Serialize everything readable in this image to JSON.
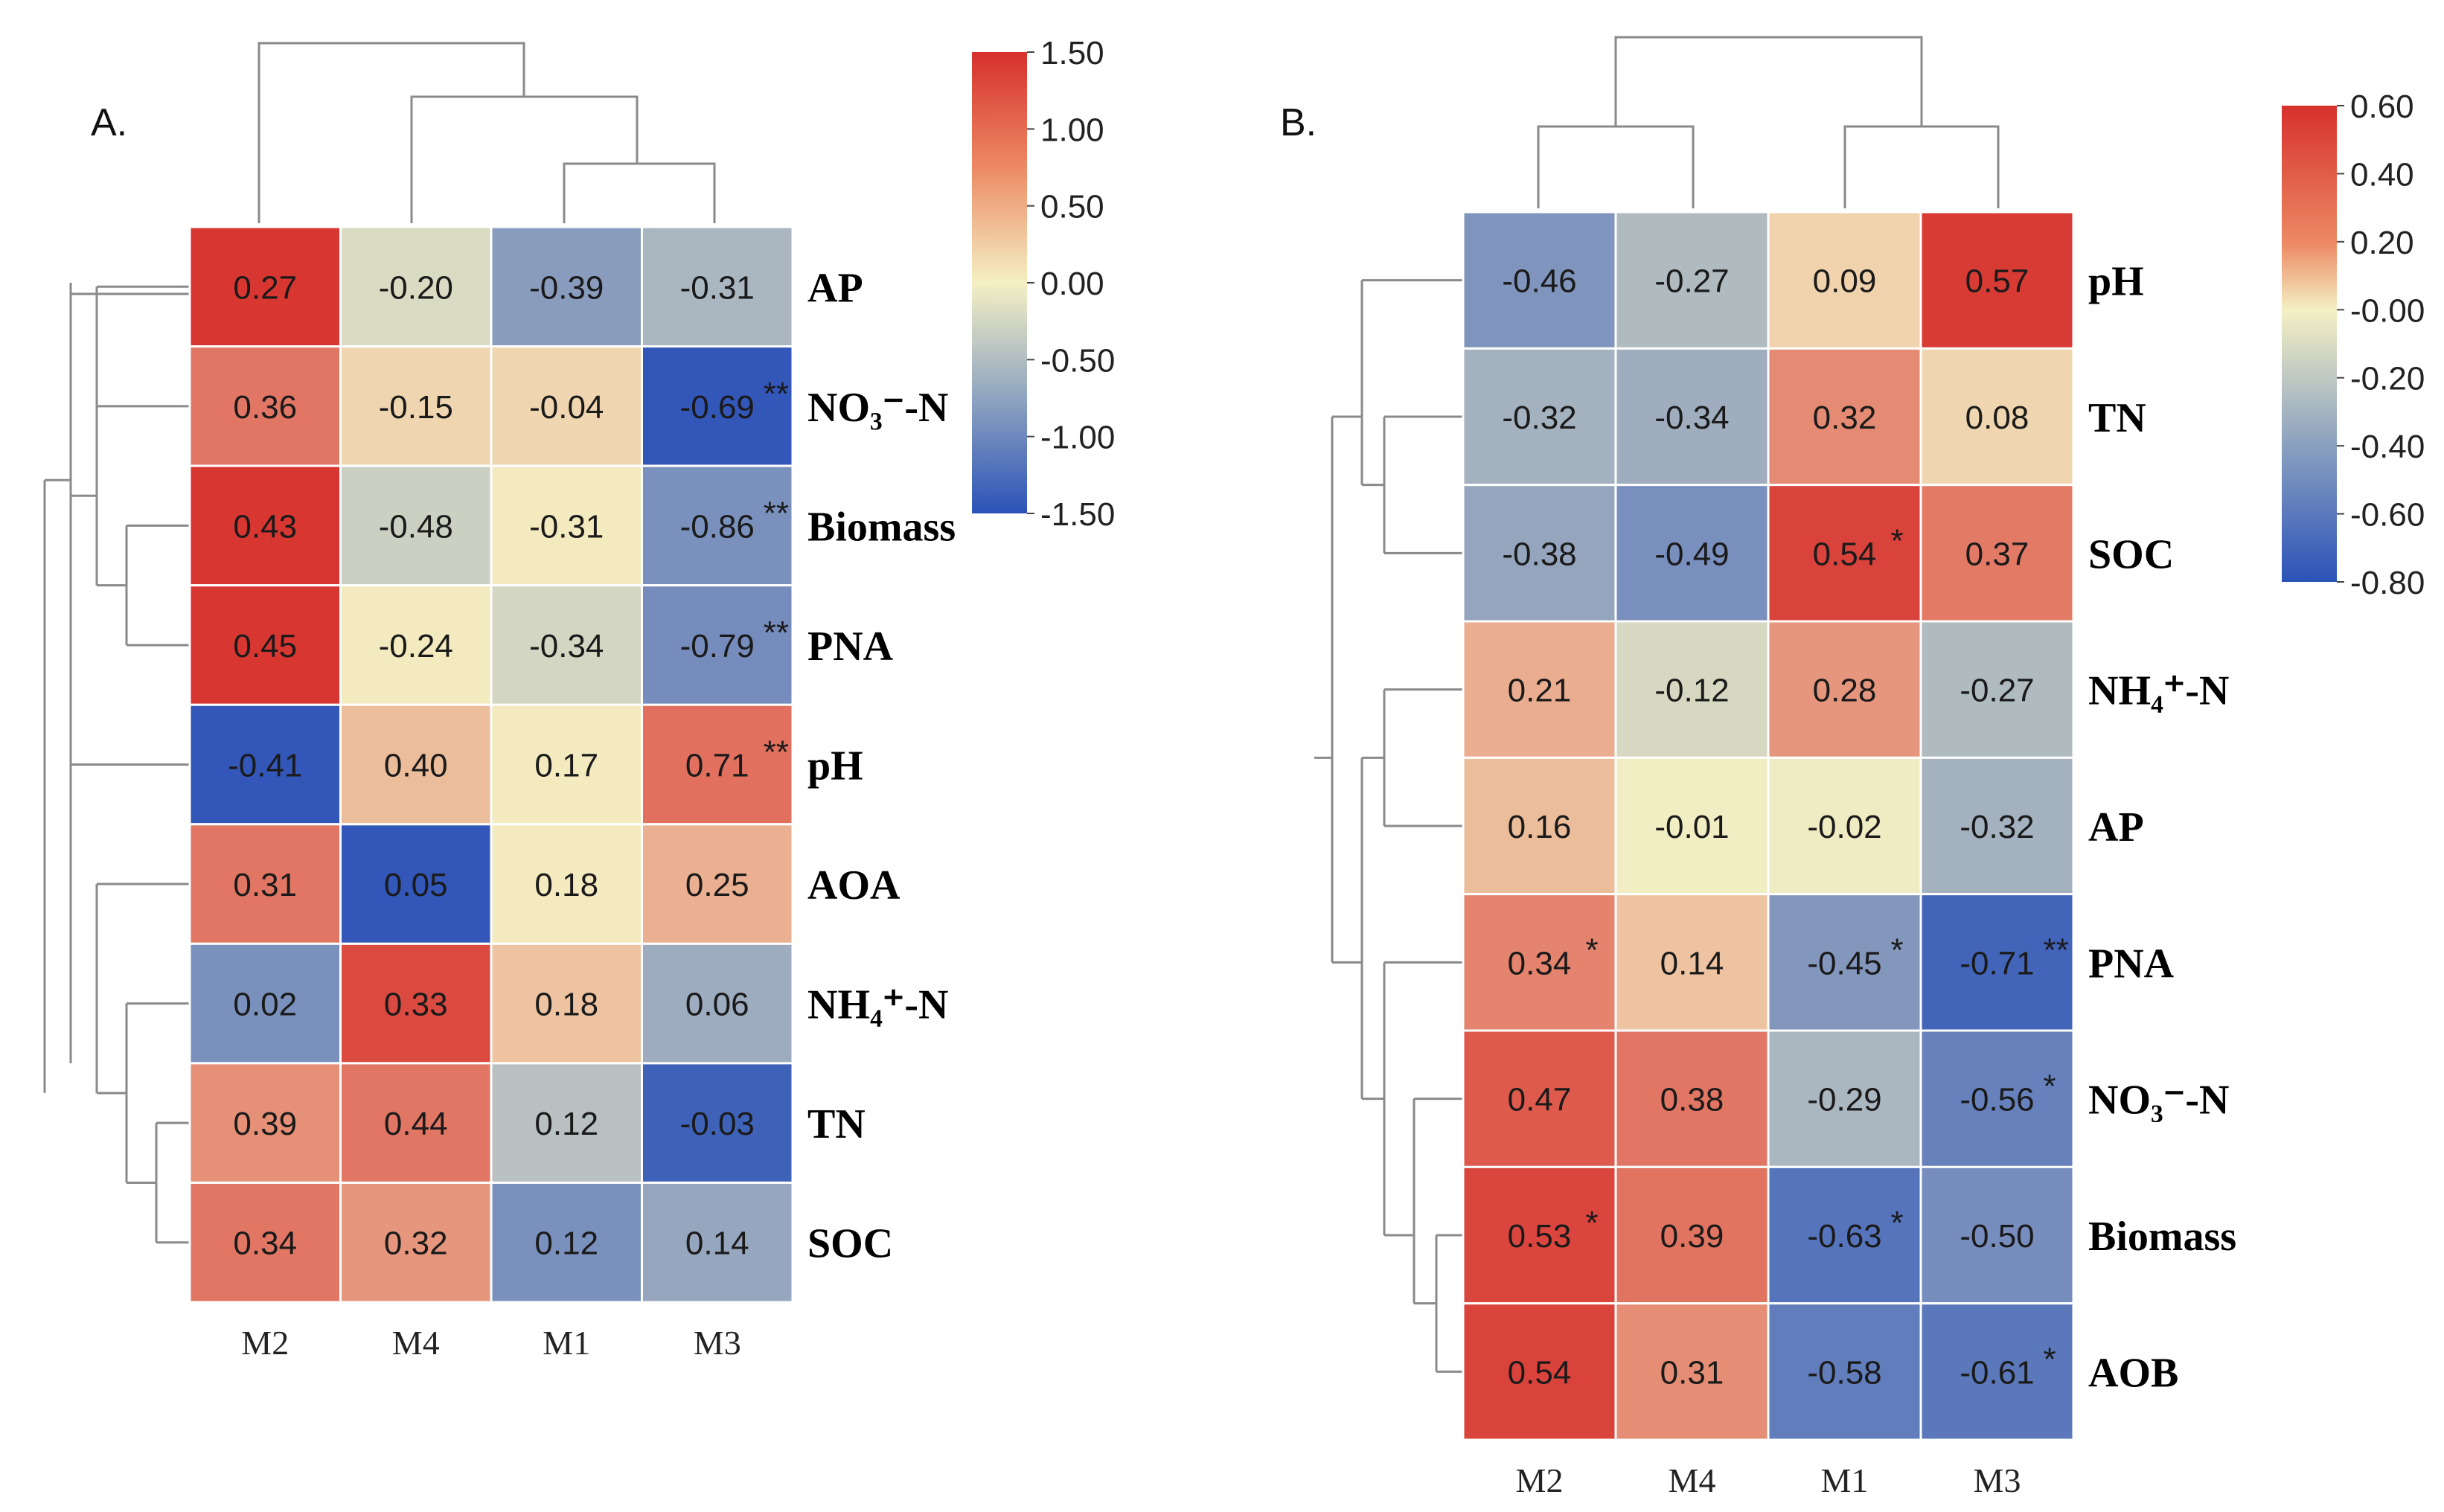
{
  "chart_data": [
    {
      "type": "heatmap",
      "panel_label": "A.",
      "columns": [
        "M2",
        "M4",
        "M1",
        "M3"
      ],
      "rows": [
        "AP",
        "NO₃⁻-N",
        "Biomass",
        "PNA",
        "pH",
        "AOA",
        "NH₄⁺-N",
        "TN",
        "SOC"
      ],
      "values": [
        [
          0.27,
          -0.2,
          -0.39,
          -0.31
        ],
        [
          0.36,
          -0.15,
          -0.04,
          -0.69
        ],
        [
          0.43,
          -0.48,
          -0.31,
          -0.86
        ],
        [
          0.45,
          -0.24,
          -0.34,
          -0.79
        ],
        [
          -0.41,
          0.4,
          0.17,
          0.71
        ],
        [
          0.31,
          0.05,
          0.18,
          0.25
        ],
        [
          0.02,
          0.33,
          0.18,
          0.06
        ],
        [
          0.39,
          0.44,
          0.12,
          -0.03
        ],
        [
          0.34,
          0.32,
          0.12,
          0.14
        ]
      ],
      "labels": [
        [
          "0.27",
          "-0.20",
          "-0.39",
          "-0.31"
        ],
        [
          "0.36",
          "-0.15",
          "-0.04",
          "-0.69"
        ],
        [
          "0.43",
          "-0.48",
          "-0.31",
          "-0.86"
        ],
        [
          "0.45",
          "-0.24",
          "-0.34",
          "-0.79"
        ],
        [
          "-0.41",
          "0.40",
          "0.17",
          "0.71"
        ],
        [
          "0.31",
          "0.05",
          "0.18",
          "0.25"
        ],
        [
          "0.02",
          "0.33",
          "0.18",
          "0.06"
        ],
        [
          "0.39",
          "0.44",
          "0.12",
          "-0.03"
        ],
        [
          "0.34",
          "0.32",
          "0.12",
          "0.14"
        ]
      ],
      "significance": [
        [
          "",
          "",
          "",
          ""
        ],
        [
          "",
          "",
          "",
          "**"
        ],
        [
          "",
          "",
          "",
          "**"
        ],
        [
          "",
          "",
          "",
          "**"
        ],
        [
          "",
          "",
          "",
          "**"
        ],
        [
          "",
          "",
          "",
          ""
        ],
        [
          "",
          "",
          "",
          ""
        ],
        [
          "",
          "",
          "",
          ""
        ],
        [
          "",
          "",
          "",
          ""
        ]
      ],
      "color_scale": {
        "min": -1.5,
        "max": 1.5,
        "ticks": [
          "1.50",
          "1.00",
          "0.50",
          "0.00",
          "-0.50",
          "-1.00",
          "-1.50"
        ],
        "colors": [
          "#2b52b8",
          "#f4f0c4",
          "#d7302c"
        ]
      },
      "cell_color_values": [
        [
          1.45,
          -0.2,
          -0.8,
          -0.55
        ],
        [
          0.95,
          0.2,
          0.2,
          -1.45
        ],
        [
          1.45,
          -0.3,
          0.05,
          -0.9
        ],
        [
          1.45,
          0.05,
          -0.25,
          -0.95
        ],
        [
          -1.45,
          0.4,
          0.05,
          1.0
        ],
        [
          0.95,
          -1.45,
          0.05,
          0.5
        ],
        [
          -0.9,
          1.3,
          0.35,
          -0.65
        ],
        [
          0.75,
          0.95,
          -0.45,
          -1.35
        ],
        [
          0.95,
          0.7,
          -0.9,
          -0.7
        ]
      ]
    },
    {
      "type": "heatmap",
      "panel_label": "B.",
      "columns": [
        "M2",
        "M4",
        "M1",
        "M3"
      ],
      "rows": [
        "pH",
        "TN",
        "SOC",
        "NH₄⁺-N",
        "AP",
        "PNA",
        "NO₃⁻-N",
        "Biomass",
        "AOB"
      ],
      "values": [
        [
          -0.46,
          -0.27,
          0.09,
          0.57
        ],
        [
          -0.32,
          -0.34,
          0.32,
          0.08
        ],
        [
          -0.38,
          -0.49,
          0.54,
          0.37
        ],
        [
          0.21,
          -0.12,
          0.28,
          -0.27
        ],
        [
          0.16,
          -0.01,
          -0.02,
          -0.32
        ],
        [
          0.34,
          0.14,
          -0.45,
          -0.71
        ],
        [
          0.47,
          0.38,
          -0.29,
          -0.56
        ],
        [
          0.53,
          0.39,
          -0.63,
          -0.5
        ],
        [
          0.54,
          0.31,
          -0.58,
          -0.61
        ]
      ],
      "labels": [
        [
          "-0.46",
          "-0.27",
          "0.09",
          "0.57"
        ],
        [
          "-0.32",
          "-0.34",
          "0.32",
          "0.08"
        ],
        [
          "-0.38",
          "-0.49",
          "0.54",
          "0.37"
        ],
        [
          "0.21",
          "-0.12",
          "0.28",
          "-0.27"
        ],
        [
          "0.16",
          "-0.01",
          "-0.02",
          "-0.32"
        ],
        [
          "0.34",
          "0.14",
          "-0.45",
          "-0.71"
        ],
        [
          "0.47",
          "0.38",
          "-0.29",
          "-0.56"
        ],
        [
          "0.53",
          "0.39",
          "-0.63",
          "-0.50"
        ],
        [
          "0.54",
          "0.31",
          "-0.58",
          "-0.61"
        ]
      ],
      "significance": [
        [
          "",
          "",
          "",
          ""
        ],
        [
          "",
          "",
          "",
          ""
        ],
        [
          "",
          "",
          "*",
          ""
        ],
        [
          "",
          "",
          "",
          ""
        ],
        [
          "",
          "",
          "",
          ""
        ],
        [
          "*",
          "",
          "*",
          "**"
        ],
        [
          "",
          "",
          "",
          "*"
        ],
        [
          "*",
          "",
          "*",
          ""
        ],
        [
          "",
          "",
          "",
          "*"
        ]
      ],
      "color_scale": {
        "min": -0.8,
        "max": 0.6,
        "ticks": [
          "0.60",
          "0.40",
          "0.20",
          "-0.00",
          "-0.20",
          "-0.40",
          "-0.60",
          "-0.80"
        ],
        "colors": [
          "#2b52b8",
          "#f4f0c4",
          "#d7302c"
        ]
      }
    }
  ]
}
